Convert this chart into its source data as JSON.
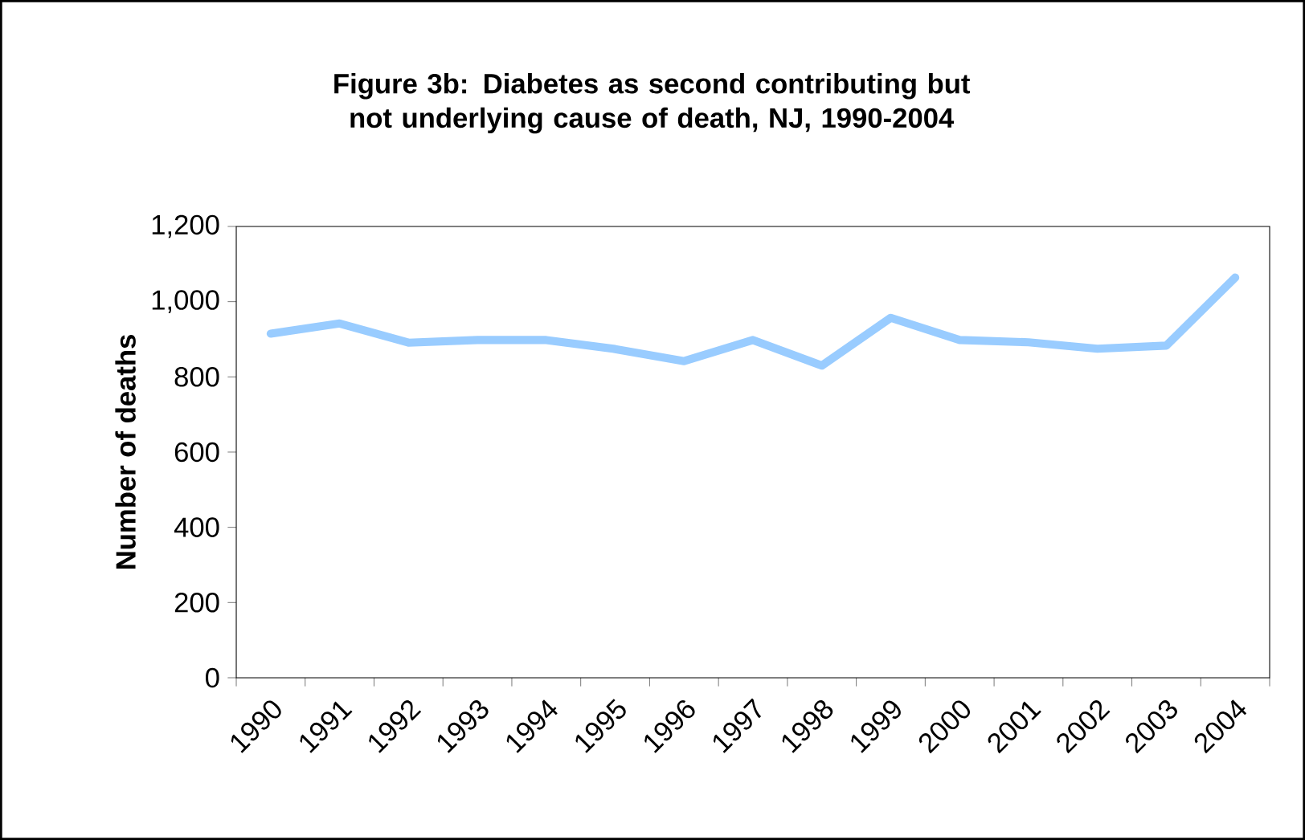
{
  "chart_data": {
    "type": "line",
    "title": "Figure 3b: Diabetes as second contributing but not underlying cause of death, NJ, 1990-2004",
    "ylabel": "Number of deaths",
    "categories": [
      "1990",
      "1991",
      "1992",
      "1993",
      "1994",
      "1995",
      "1996",
      "1997",
      "1998",
      "1999",
      "2000",
      "2001",
      "2002",
      "2003",
      "2004"
    ],
    "series": [
      {
        "color": "#99ccff",
        "values": [
          915,
          942,
          891,
          898,
          898,
          874,
          842,
          898,
          830,
          957,
          898,
          892,
          875,
          883,
          1064
        ]
      }
    ],
    "ylim": [
      0,
      1200
    ],
    "yticks": [
      {
        "value": 0,
        "label": "0"
      },
      {
        "value": 200,
        "label": "200"
      },
      {
        "value": 400,
        "label": "400"
      },
      {
        "value": 600,
        "label": "600"
      },
      {
        "value": 800,
        "label": "800"
      },
      {
        "value": 1000,
        "label": "1,000"
      },
      {
        "value": 1200,
        "label": "1,200"
      }
    ],
    "marker": "none",
    "line_style": "solid"
  }
}
